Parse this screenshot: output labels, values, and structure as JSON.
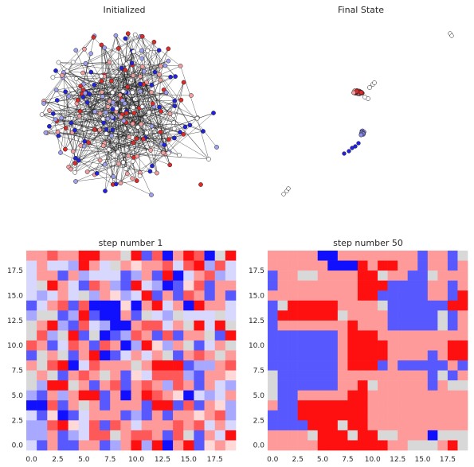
{
  "chart_data": [
    {
      "type": "network",
      "title": "Initialized",
      "node_colors": [
        "#2222dd",
        "#dd2a2a",
        "#f0a0a0",
        "#a0a0f0",
        "#ffffff"
      ],
      "edge_color": "#222222",
      "grid": false
    },
    {
      "type": "network",
      "title": "Final State",
      "clusters": [
        "red cluster",
        "blue cluster",
        "white pair (top-right)",
        "white pair (bottom-left)"
      ],
      "node_colors": [
        "#dd2a2a",
        "#f0a0a0",
        "#8888ee",
        "#2222dd",
        "#ffffff"
      ],
      "grid": false
    },
    {
      "type": "heatmap",
      "title": "step number 1",
      "xticks": [
        "0.0",
        "2.5",
        "5.0",
        "7.5",
        "10.0",
        "12.5",
        "15.0",
        "17.5"
      ],
      "yticks": [
        "0.0",
        "2.5",
        "5.0",
        "7.5",
        "10.0",
        "12.5",
        "15.0",
        "17.5"
      ],
      "xlim": [
        -0.5,
        19.5
      ],
      "ylim": [
        19.5,
        -0.5
      ],
      "colormap": "bwr",
      "palette": {
        "0": "#1010ff",
        "1": "#5858ff",
        "2": "#a8a8ff",
        "3": "#d8d8ff",
        "4": "#d8d8d8",
        "5": "#ffd8d8",
        "6": "#ff9a9a",
        "7": "#ff5858",
        "8": "#ff1010"
      },
      "values": [
        [
          6,
          6,
          7,
          6,
          6,
          8,
          8,
          6,
          6,
          4,
          8,
          1,
          7,
          0,
          6,
          8,
          7,
          0,
          4,
          8
        ],
        [
          3,
          6,
          3,
          3,
          2,
          8,
          6,
          3,
          4,
          6,
          5,
          6,
          6,
          7,
          3,
          7,
          8,
          2,
          7,
          3
        ],
        [
          3,
          6,
          6,
          1,
          6,
          2,
          3,
          3,
          3,
          1,
          2,
          6,
          1,
          8,
          0,
          3,
          6,
          7,
          2,
          3
        ],
        [
          3,
          4,
          8,
          6,
          3,
          1,
          7,
          6,
          2,
          1,
          8,
          3,
          2,
          0,
          1,
          5,
          7,
          1,
          6,
          6
        ],
        [
          3,
          2,
          3,
          6,
          3,
          4,
          2,
          6,
          5,
          2,
          3,
          8,
          1,
          6,
          1,
          7,
          6,
          1,
          6,
          1
        ],
        [
          1,
          3,
          6,
          7,
          1,
          7,
          0,
          0,
          0,
          5,
          0,
          6,
          8,
          3,
          6,
          0,
          8,
          6,
          6,
          3
        ],
        [
          2,
          4,
          4,
          1,
          2,
          8,
          1,
          0,
          0,
          6,
          1,
          4,
          3,
          2,
          4,
          3,
          3,
          3,
          4,
          3
        ],
        [
          4,
          6,
          8,
          2,
          1,
          7,
          3,
          2,
          0,
          0,
          6,
          7,
          7,
          3,
          6,
          4,
          8,
          3,
          8,
          4
        ],
        [
          4,
          7,
          2,
          4,
          8,
          1,
          4,
          0,
          1,
          2,
          7,
          6,
          1,
          7,
          1,
          6,
          6,
          4,
          1,
          8
        ],
        [
          7,
          6,
          1,
          3,
          7,
          6,
          1,
          7,
          6,
          0,
          2,
          8,
          5,
          2,
          6,
          4,
          1,
          3,
          6,
          4
        ],
        [
          1,
          4,
          6,
          4,
          1,
          6,
          8,
          0,
          1,
          3,
          6,
          3,
          6,
          4,
          1,
          6,
          7,
          6,
          4,
          6
        ],
        [
          6,
          4,
          7,
          8,
          0,
          3,
          7,
          6,
          6,
          6,
          4,
          6,
          8,
          8,
          8,
          1,
          2,
          2,
          6,
          7
        ],
        [
          4,
          6,
          4,
          1,
          6,
          7,
          6,
          4,
          6,
          1,
          5,
          3,
          7,
          7,
          7,
          2,
          1,
          6,
          6,
          5
        ],
        [
          4,
          2,
          8,
          8,
          4,
          6,
          1,
          6,
          7,
          1,
          6,
          7,
          6,
          2,
          7,
          6,
          1,
          6,
          3,
          2
        ],
        [
          2,
          1,
          6,
          2,
          6,
          8,
          8,
          1,
          6,
          0,
          6,
          8,
          7,
          6,
          5,
          0,
          3,
          2,
          3,
          6
        ],
        [
          0,
          0,
          7,
          1,
          6,
          4,
          6,
          1,
          6,
          6,
          6,
          1,
          8,
          8,
          1,
          7,
          1,
          6,
          5,
          2
        ],
        [
          3,
          1,
          5,
          0,
          1,
          3,
          6,
          6,
          6,
          1,
          2,
          1,
          6,
          1,
          6,
          6,
          5,
          6,
          7,
          2
        ],
        [
          2,
          2,
          7,
          8,
          5,
          3,
          7,
          1,
          7,
          6,
          3,
          6,
          6,
          6,
          7,
          6,
          7,
          3,
          6,
          3
        ],
        [
          2,
          2,
          6,
          1,
          2,
          3,
          7,
          7,
          4,
          6,
          7,
          7,
          6,
          1,
          7,
          4,
          1,
          6,
          3,
          8
        ],
        [
          3,
          1,
          6,
          1,
          1,
          6,
          6,
          1,
          2,
          6,
          8,
          2,
          8,
          0,
          6,
          8,
          1,
          5,
          6,
          5
        ]
      ]
    },
    {
      "type": "heatmap",
      "title": "step number 50",
      "xticks": [
        "0.0",
        "2.5",
        "5.0",
        "7.5",
        "10.0",
        "12.5",
        "15.0",
        "17.5"
      ],
      "yticks": [
        "0.0",
        "2.5",
        "5.0",
        "7.5",
        "10.0",
        "12.5",
        "15.0",
        "17.5"
      ],
      "xlim": [
        -0.5,
        19.5
      ],
      "ylim": [
        19.5,
        -0.5
      ],
      "colormap": "bwr",
      "palette": {
        "0": "#1010ff",
        "1": "#5858ff",
        "2": "#a8a8ff",
        "3": "#d8d8ff",
        "4": "#d8d8d8",
        "5": "#ffd8d8",
        "6": "#ff9a9a",
        "7": "#ff5858",
        "8": "#ff1010"
      },
      "values": [
        [
          6,
          6,
          6,
          6,
          6,
          0,
          0,
          6,
          6,
          6,
          6,
          6,
          6,
          6,
          6,
          1,
          6,
          6,
          1,
          4
        ],
        [
          6,
          6,
          6,
          6,
          6,
          6,
          0,
          0,
          0,
          8,
          6,
          8,
          8,
          6,
          6,
          1,
          6,
          6,
          1,
          6
        ],
        [
          1,
          6,
          6,
          4,
          4,
          6,
          6,
          6,
          6,
          8,
          8,
          4,
          6,
          6,
          1,
          1,
          4,
          6,
          6,
          6
        ],
        [
          1,
          6,
          6,
          6,
          6,
          6,
          6,
          6,
          6,
          8,
          8,
          8,
          1,
          1,
          1,
          1,
          6,
          6,
          1,
          6
        ],
        [
          6,
          6,
          6,
          6,
          6,
          6,
          6,
          6,
          6,
          8,
          8,
          1,
          1,
          1,
          1,
          1,
          6,
          6,
          1,
          8
        ],
        [
          1,
          4,
          8,
          8,
          8,
          8,
          8,
          6,
          6,
          6,
          6,
          4,
          1,
          1,
          1,
          1,
          1,
          1,
          8,
          8
        ],
        [
          1,
          8,
          8,
          8,
          8,
          8,
          8,
          4,
          6,
          6,
          6,
          6,
          1,
          1,
          1,
          1,
          1,
          4,
          1,
          6
        ],
        [
          1,
          6,
          6,
          6,
          6,
          6,
          6,
          6,
          8,
          6,
          6,
          6,
          1,
          1,
          1,
          1,
          1,
          4,
          1,
          6
        ],
        [
          1,
          1,
          1,
          1,
          1,
          1,
          1,
          6,
          8,
          8,
          8,
          6,
          6,
          6,
          6,
          6,
          6,
          6,
          6,
          6
        ],
        [
          1,
          1,
          1,
          1,
          1,
          1,
          1,
          6,
          8,
          8,
          8,
          8,
          6,
          6,
          6,
          6,
          6,
          6,
          8,
          8
        ],
        [
          1,
          1,
          1,
          1,
          1,
          1,
          1,
          6,
          8,
          8,
          8,
          8,
          6,
          6,
          6,
          6,
          1,
          6,
          8,
          8
        ],
        [
          1,
          1,
          1,
          1,
          1,
          1,
          1,
          6,
          8,
          8,
          8,
          1,
          6,
          1,
          1,
          1,
          1,
          1,
          6,
          1
        ],
        [
          4,
          1,
          1,
          1,
          1,
          1,
          1,
          6,
          6,
          6,
          6,
          6,
          6,
          6,
          6,
          6,
          1,
          4,
          1,
          6
        ],
        [
          4,
          1,
          1,
          1,
          1,
          1,
          1,
          6,
          6,
          8,
          4,
          6,
          6,
          6,
          6,
          6,
          1,
          6,
          4,
          4
        ],
        [
          4,
          1,
          1,
          6,
          6,
          6,
          6,
          6,
          8,
          8,
          6,
          6,
          6,
          6,
          6,
          6,
          6,
          6,
          6,
          6
        ],
        [
          6,
          1,
          1,
          8,
          8,
          8,
          8,
          8,
          8,
          8,
          6,
          6,
          6,
          6,
          6,
          6,
          6,
          6,
          6,
          6
        ],
        [
          1,
          1,
          1,
          8,
          8,
          8,
          8,
          8,
          8,
          8,
          6,
          6,
          6,
          6,
          6,
          6,
          6,
          6,
          6,
          6
        ],
        [
          1,
          1,
          1,
          1,
          8,
          8,
          8,
          4,
          8,
          8,
          6,
          6,
          6,
          6,
          6,
          6,
          6,
          6,
          6,
          6
        ],
        [
          6,
          6,
          6,
          6,
          4,
          8,
          8,
          8,
          4,
          8,
          8,
          4,
          4,
          6,
          6,
          6,
          0,
          4,
          4,
          4
        ],
        [
          6,
          6,
          6,
          6,
          6,
          8,
          8,
          8,
          8,
          8,
          8,
          8,
          6,
          6,
          4,
          4,
          4,
          6,
          8,
          4
        ]
      ]
    }
  ]
}
